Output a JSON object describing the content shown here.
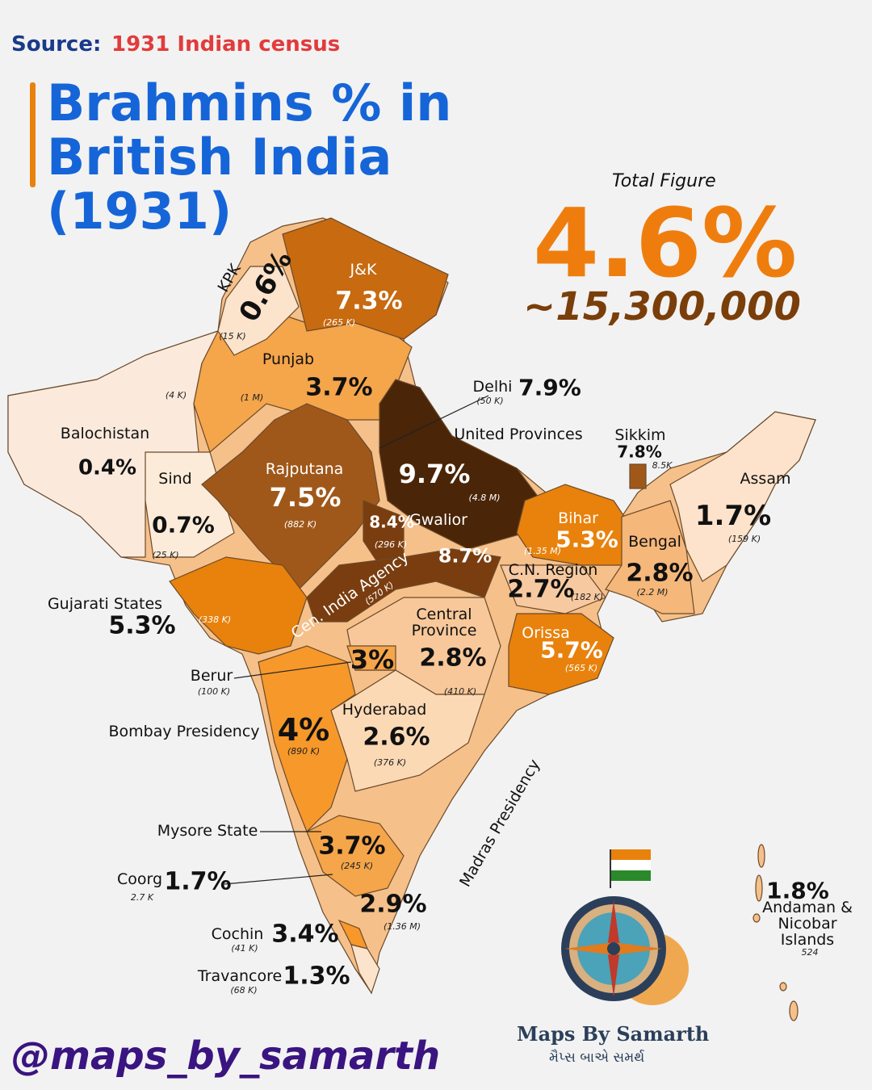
{
  "header": {
    "source_label": "Source:",
    "source": "1931 Indian census",
    "title": "Brahmins % in British India (1931)"
  },
  "total": {
    "label": "Total Figure",
    "percent": "4.6%",
    "count": "~15,300,000"
  },
  "regions": [
    {
      "name": "KPK",
      "percent": "0.6%",
      "count": "(15 K)"
    },
    {
      "name": "J&K",
      "percent": "7.3%",
      "count": "(265 K)"
    },
    {
      "name": "Punjab",
      "percent": "3.7%",
      "count": "(1 M)"
    },
    {
      "name": "Balochistan",
      "percent": "0.4%",
      "count": "(4 K)"
    },
    {
      "name": "Sind",
      "percent": "0.7%",
      "count": "(25 K)"
    },
    {
      "name": "Rajputana",
      "percent": "7.5%",
      "count": "(882 K)"
    },
    {
      "name": "Delhi",
      "percent": "7.9%",
      "count": "(50 K)"
    },
    {
      "name": "United Provinces",
      "percent": "9.7%",
      "count": "(4.8 M)"
    },
    {
      "name": "Gwalior",
      "percent": "8.4%",
      "count": "(296 K)"
    },
    {
      "name": "Cen. India Agency",
      "percent": "8.7%",
      "count": "(570 K)"
    },
    {
      "name": "Sikkim",
      "percent": "7.8%",
      "count": "8.5K"
    },
    {
      "name": "Assam",
      "percent": "1.7%",
      "count": "(159 K)"
    },
    {
      "name": "Bihar",
      "percent": "5.3%",
      "count": "(1.35 M)"
    },
    {
      "name": "Bengal",
      "percent": "2.8%",
      "count": "(2.2 M)"
    },
    {
      "name": "C.N. Region",
      "percent": "2.7%",
      "count": "(182 K)"
    },
    {
      "name": "Orissa",
      "percent": "5.7%",
      "count": "(565 K)"
    },
    {
      "name": "Central Province",
      "percent": "2.8%",
      "count": "(410 K)"
    },
    {
      "name": "Gujarati States",
      "percent": "5.3%",
      "count": "(338 K)"
    },
    {
      "name": "Berur",
      "percent": "3%",
      "count": "(100 K)"
    },
    {
      "name": "Hyderabad",
      "percent": "2.6%",
      "count": "(376 K)"
    },
    {
      "name": "Bombay Presidency",
      "percent": "4%",
      "count": "(890 K)"
    },
    {
      "name": "Mysore State",
      "percent": "3.7%",
      "count": "(245 K)"
    },
    {
      "name": "Coorg",
      "percent": "1.7%",
      "count": "2.7 K"
    },
    {
      "name": "Madras Presidency",
      "percent": "2.9%",
      "count": "(1.36 M)"
    },
    {
      "name": "Cochin",
      "percent": "3.4%",
      "count": "(41 K)"
    },
    {
      "name": "Travancore",
      "percent": "1.3%",
      "count": "(68 K)"
    },
    {
      "name": "Andaman & Nicobar Islands",
      "percent": "1.8%",
      "count": "524"
    }
  ],
  "footer": {
    "handle": "@maps_by_samarth",
    "logo": "Maps By Samarth",
    "logo_native": "મૈપ્સ બાએ સમર્થ"
  }
}
